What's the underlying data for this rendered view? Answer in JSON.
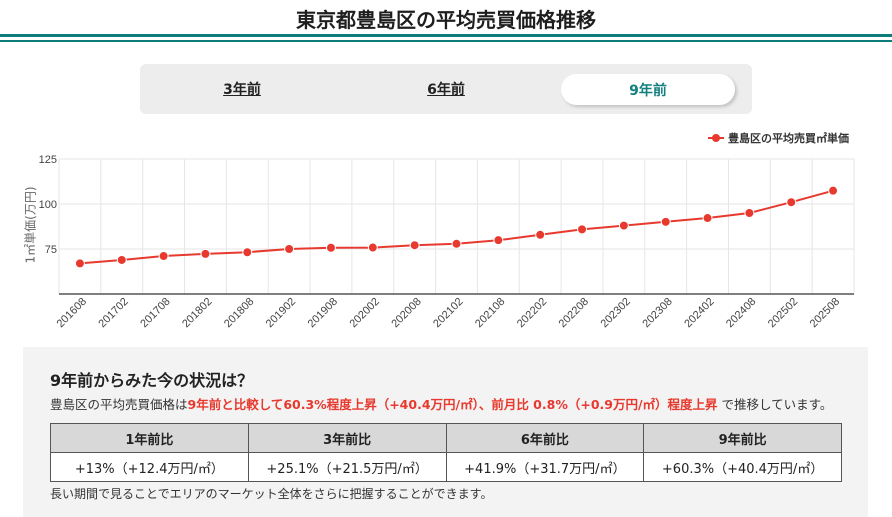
{
  "header": {
    "title": "東京都豊島区の平均売買価格推移",
    "accent_color": "#0e7c7b"
  },
  "tabs": [
    {
      "label": "3年前",
      "active": false
    },
    {
      "label": "6年前",
      "active": false
    },
    {
      "label": "9年前",
      "active": true
    }
  ],
  "chart_data": {
    "type": "line",
    "title": "",
    "xlabel": "",
    "ylabel": "1㎡単価(万円)",
    "ylim": [
      50,
      125
    ],
    "yticks": [
      75,
      100,
      125
    ],
    "grid": true,
    "legend_position": "top-right",
    "categories": [
      "201608",
      "201702",
      "201708",
      "201802",
      "201808",
      "201902",
      "201908",
      "202002",
      "202008",
      "202102",
      "202108",
      "202202",
      "202208",
      "202302",
      "202308",
      "202402",
      "202408",
      "202502",
      "202508"
    ],
    "series": [
      {
        "name": "豊島区の平均売買㎡単価",
        "color": "#e8392e",
        "values": [
          67.0,
          68.9,
          71.1,
          72.3,
          73.2,
          75.0,
          75.7,
          75.8,
          77.1,
          77.9,
          79.9,
          82.9,
          85.9,
          88.0,
          90.1,
          92.2,
          95.0,
          101.0,
          107.4
        ]
      }
    ]
  },
  "summary": {
    "heading": "9年前からみた今の状況は？",
    "text_prefix": "豊島区の平均売買価格は",
    "text_highlight": "9年前と比較して60.3%程度上昇（+40.4万円/㎡）、前月比 0.8%（+0.9万円/㎡）程度上昇",
    "text_suffix": " で推移しています。",
    "highlight_color": "#e8392e",
    "table": {
      "headers": [
        "1年前比",
        "3年前比",
        "6年前比",
        "9年前比"
      ],
      "rows": [
        [
          "+13%（+12.4万円/㎡）",
          "+25.1%（+21.5万円/㎡）",
          "+41.9%（+31.7万円/㎡）",
          "+60.3%（+40.4万円/㎡）"
        ]
      ]
    },
    "note": "長い期間で見ることでエリアのマーケット全体をさらに把握することができます。"
  }
}
